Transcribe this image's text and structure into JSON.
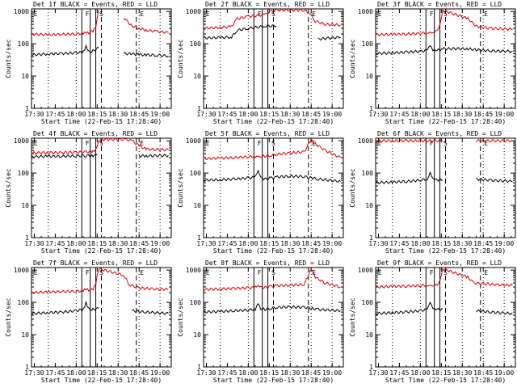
{
  "colors": {
    "events": "#000000",
    "lld": "#dd0000",
    "background": "#ffffff"
  },
  "chart_data": [
    {
      "type": "line",
      "title": "Det 1f BLACK = Events, RED = LLD",
      "ylabel": "Counts/sec",
      "xlabel": "Start Time (22-Feb-15 17:28:40)",
      "yscale": "log",
      "ylim": [
        1,
        1200
      ],
      "xticks": [
        "17:30",
        "17:45",
        "18:00",
        "18:15",
        "18:30",
        "18:45",
        "19:00"
      ],
      "yticks": [
        "1",
        "10",
        "100",
        "1000"
      ],
      "markers": [
        "E",
        "F",
        "S",
        "E"
      ],
      "series": [
        {
          "name": "BLACK = Events",
          "x": [
            "17:28",
            "17:40",
            "17:50",
            "18:00",
            "18:05",
            "18:07",
            "18:09",
            "18:12",
            "18:16",
            "18:32",
            "18:34",
            "18:40",
            "18:45",
            "18:50",
            "18:58",
            "19:06"
          ],
          "y": [
            45,
            48,
            50,
            52,
            55,
            80,
            55,
            60,
            75,
            null,
            50,
            48,
            46,
            45,
            44,
            42
          ]
        },
        {
          "name": "RED = LLD",
          "x": [
            "17:28",
            "17:40",
            "17:50",
            "18:00",
            "18:05",
            "18:07",
            "18:09",
            "18:12",
            "18:14",
            "18:16",
            "18:32",
            "18:34",
            "18:40",
            "18:45",
            "18:50",
            "18:58",
            "19:06"
          ],
          "y": [
            200,
            190,
            195,
            200,
            210,
            230,
            220,
            250,
            350,
            1100,
            null,
            650,
            350,
            300,
            260,
            240,
            220
          ]
        }
      ]
    },
    {
      "type": "line",
      "title": "Det 2f BLACK = Events, RED = LLD",
      "ylabel": "Counts/sec",
      "xlabel": "Start Time (22-Feb-15 17:28:40)",
      "yscale": "log",
      "ylim": [
        1,
        1200
      ],
      "xticks": [
        "17:30",
        "17:45",
        "18:00",
        "18:15",
        "18:30",
        "18:45",
        "19:00"
      ],
      "yticks": [
        "1",
        "10",
        "100",
        "1000"
      ],
      "markers": [
        "E",
        "F",
        "S",
        "E"
      ],
      "series": [
        {
          "name": "BLACK = Events",
          "x": [
            "17:28",
            "17:40",
            "17:48",
            "17:52",
            "18:00",
            "18:07",
            "18:12",
            "18:20",
            "18:30",
            "18:45",
            "18:50",
            "19:06"
          ],
          "y": [
            150,
            155,
            160,
            260,
            300,
            330,
            350,
            360,
            null,
            null,
            140,
            160
          ]
        },
        {
          "name": "RED = LLD",
          "x": [
            "17:28",
            "17:40",
            "17:48",
            "17:52",
            "18:00",
            "18:07",
            "18:12",
            "18:16",
            "18:20",
            "18:30",
            "18:40",
            "18:44",
            "18:48",
            "18:55",
            "19:06"
          ],
          "y": [
            300,
            320,
            340,
            600,
            700,
            750,
            800,
            1000,
            1100,
            1100,
            1100,
            900,
            500,
            400,
            380
          ]
        }
      ]
    },
    {
      "type": "line",
      "title": "Det 3f BLACK = Events, RED = LLD",
      "ylabel": "Counts/sec",
      "xlabel": "Start Time (22-Feb-15 17:28:40)",
      "yscale": "log",
      "ylim": [
        1,
        1200
      ],
      "xticks": [
        "17:30",
        "17:45",
        "18:00",
        "18:15",
        "18:30",
        "18:45",
        "19:00"
      ],
      "yticks": [
        "1",
        "10",
        "100",
        "1000"
      ],
      "markers": [
        "E",
        "F",
        "S",
        "E"
      ],
      "series": [
        {
          "name": "BLACK = Events",
          "x": [
            "17:28",
            "17:40",
            "17:50",
            "18:00",
            "18:05",
            "18:07",
            "18:09",
            "18:12",
            "18:16",
            "18:34",
            "18:40",
            "18:50",
            "19:06"
          ],
          "y": [
            50,
            52,
            55,
            58,
            62,
            85,
            60,
            62,
            70,
            70,
            65,
            60,
            58
          ]
        },
        {
          "name": "RED = LLD",
          "x": [
            "17:28",
            "17:40",
            "17:50",
            "18:00",
            "18:05",
            "18:07",
            "18:09",
            "18:12",
            "18:14",
            "18:16",
            "18:34",
            "18:40",
            "18:50",
            "19:06"
          ],
          "y": [
            190,
            195,
            200,
            210,
            220,
            240,
            225,
            260,
            400,
            1100,
            600,
            350,
            300,
            280
          ]
        }
      ]
    },
    {
      "type": "line",
      "title": "Det 4f BLACK = Events, RED = LLD",
      "ylabel": "Counts/sec",
      "xlabel": "Start Time (22-Feb-15 17:28:40)",
      "yscale": "log",
      "ylim": [
        1,
        1200
      ],
      "xticks": [
        "17:30",
        "17:45",
        "18:00",
        "18:15",
        "18:30",
        "18:45",
        "19:00"
      ],
      "yticks": [
        "1",
        "10",
        "100",
        "1000"
      ],
      "markers": [
        "E",
        "F",
        "S",
        "E"
      ],
      "series": [
        {
          "name": "BLACK = Events",
          "x": [
            "17:28",
            "17:40",
            "17:50",
            "18:00",
            "18:07",
            "18:12",
            "18:15",
            "18:40",
            "18:45",
            "18:50",
            "19:06"
          ],
          "y": [
            320,
            330,
            330,
            340,
            345,
            350,
            360,
            null,
            340,
            340,
            350
          ]
        },
        {
          "name": "RED = LLD",
          "x": [
            "17:28",
            "17:40",
            "17:50",
            "18:00",
            "18:07",
            "18:12",
            "18:14",
            "18:16",
            "18:18",
            "18:35",
            "18:40",
            "18:45",
            "18:50",
            "19:06"
          ],
          "y": [
            420,
            430,
            430,
            440,
            450,
            460,
            500,
            900,
            1100,
            1100,
            1000,
            700,
            550,
            520
          ]
        }
      ]
    },
    {
      "type": "line",
      "title": "Det 5f BLACK = Events, RED = LLD",
      "ylabel": "Counts/sec",
      "xlabel": "Start Time (22-Feb-15 17:28:40)",
      "yscale": "log",
      "ylim": [
        1,
        1200
      ],
      "xticks": [
        "17:30",
        "17:45",
        "18:00",
        "18:15",
        "18:30",
        "18:45",
        "19:00"
      ],
      "yticks": [
        "1",
        "10",
        "100",
        "1000"
      ],
      "markers": [
        "E",
        "F",
        "S",
        "E"
      ],
      "series": [
        {
          "name": "BLACK = Events",
          "x": [
            "17:28",
            "17:40",
            "17:50",
            "18:00",
            "18:05",
            "18:07",
            "18:09",
            "18:12",
            "18:16",
            "18:20",
            "18:30",
            "18:40",
            "18:46",
            "18:50",
            "19:06"
          ],
          "y": [
            60,
            62,
            65,
            70,
            75,
            110,
            70,
            65,
            70,
            75,
            80,
            78,
            70,
            65,
            55
          ]
        },
        {
          "name": "RED = LLD",
          "x": [
            "17:28",
            "17:40",
            "17:50",
            "18:00",
            "18:05",
            "18:07",
            "18:09",
            "18:12",
            "18:16",
            "18:20",
            "18:30",
            "18:40",
            "18:45",
            "18:48",
            "18:55",
            "19:06"
          ],
          "y": [
            280,
            290,
            300,
            320,
            330,
            350,
            330,
            330,
            350,
            380,
            420,
            450,
            1100,
            800,
            500,
            300
          ]
        }
      ]
    },
    {
      "type": "line",
      "title": "Det 6f BLACK = Events, RED = LLD",
      "ylabel": "Counts/sec",
      "xlabel": "Start Time (22-Feb-15 17:28:40)",
      "yscale": "log",
      "ylim": [
        1,
        1200
      ],
      "xticks": [
        "17:30",
        "17:45",
        "18:00",
        "18:15",
        "18:30",
        "18:45",
        "19:00"
      ],
      "yticks": [
        "1",
        "10",
        "100",
        "1000"
      ],
      "markers": [
        "E",
        "F",
        "S",
        "E"
      ],
      "series": [
        {
          "name": "BLACK = Events",
          "x": [
            "17:28",
            "17:40",
            "17:50",
            "18:00",
            "18:05",
            "18:07",
            "18:09",
            "18:12",
            "18:16",
            "18:34",
            "18:40",
            "18:50",
            "19:06"
          ],
          "y": [
            50,
            52,
            55,
            60,
            65,
            110,
            70,
            62,
            60,
            null,
            65,
            60,
            55
          ]
        },
        {
          "name": "RED = LLD",
          "x": [
            "17:28",
            "17:40",
            "17:50",
            "18:00",
            "18:10",
            "18:16",
            "18:34",
            "18:40",
            "18:50",
            "19:06"
          ],
          "y": [
            1000,
            1000,
            1000,
            1000,
            1000,
            1000,
            null,
            1000,
            1000,
            1000
          ]
        }
      ]
    },
    {
      "type": "line",
      "title": "Det 7f BLACK = Events, RED = LLD",
      "ylabel": "Counts/sec",
      "xlabel": "Start Time (22-Feb-15 17:28:40)",
      "yscale": "log",
      "ylim": [
        1,
        1200
      ],
      "xticks": [
        "17:30",
        "17:45",
        "18:00",
        "18:15",
        "18:30",
        "18:45",
        "19:00"
      ],
      "yticks": [
        "1",
        "10",
        "100",
        "1000"
      ],
      "markers": [
        "E",
        "F",
        "S",
        "E"
      ],
      "series": [
        {
          "name": "BLACK = Events",
          "x": [
            "17:28",
            "17:40",
            "17:50",
            "18:00",
            "18:05",
            "18:07",
            "18:09",
            "18:12",
            "18:16",
            "18:34",
            "18:40",
            "18:50",
            "19:06"
          ],
          "y": [
            45,
            48,
            50,
            55,
            60,
            95,
            62,
            60,
            65,
            null,
            55,
            50,
            45
          ]
        },
        {
          "name": "RED = LLD",
          "x": [
            "17:28",
            "17:40",
            "17:50",
            "18:00",
            "18:05",
            "18:07",
            "18:09",
            "18:12",
            "18:14",
            "18:16",
            "18:34",
            "18:38",
            "18:45",
            "18:55",
            "19:06"
          ],
          "y": [
            200,
            210,
            215,
            220,
            230,
            260,
            240,
            260,
            400,
            1100,
            700,
            350,
            280,
            260,
            250
          ]
        }
      ]
    },
    {
      "type": "line",
      "title": "Det 8f BLACK = Events, RED = LLD",
      "ylabel": "Counts/sec",
      "xlabel": "Start Time (22-Feb-15 17:28:40)",
      "yscale": "log",
      "ylim": [
        1,
        1200
      ],
      "xticks": [
        "17:30",
        "17:45",
        "18:00",
        "18:15",
        "18:30",
        "18:45",
        "19:00"
      ],
      "yticks": [
        "1",
        "10",
        "100",
        "1000"
      ],
      "markers": [
        "E",
        "F",
        "S",
        "E"
      ],
      "series": [
        {
          "name": "BLACK = Events",
          "x": [
            "17:28",
            "17:40",
            "17:50",
            "18:00",
            "18:05",
            "18:07",
            "18:09",
            "18:12",
            "18:16",
            "18:20",
            "18:30",
            "18:40",
            "18:46",
            "18:50",
            "19:06"
          ],
          "y": [
            50,
            52,
            55,
            58,
            62,
            100,
            65,
            60,
            65,
            70,
            72,
            70,
            65,
            60,
            55
          ]
        },
        {
          "name": "RED = LLD",
          "x": [
            "17:28",
            "17:40",
            "17:50",
            "18:00",
            "18:05",
            "18:07",
            "18:09",
            "18:12",
            "18:16",
            "18:20",
            "18:30",
            "18:40",
            "18:45",
            "18:48",
            "18:55",
            "19:06"
          ],
          "y": [
            250,
            260,
            270,
            280,
            290,
            310,
            290,
            290,
            310,
            330,
            340,
            360,
            1100,
            600,
            400,
            300
          ]
        }
      ]
    },
    {
      "type": "line",
      "title": "Det 9f BLACK = Events, RED = LLD",
      "ylabel": "Counts/sec",
      "xlabel": "Start Time (22-Feb-15 17:28:40)",
      "yscale": "log",
      "ylim": [
        1,
        1200
      ],
      "xticks": [
        "17:30",
        "17:45",
        "18:00",
        "18:15",
        "18:30",
        "18:45",
        "19:00"
      ],
      "yticks": [
        "1",
        "10",
        "100",
        "1000"
      ],
      "markers": [
        "E",
        "F",
        "S",
        "E"
      ],
      "series": [
        {
          "name": "BLACK = Events",
          "x": [
            "17:28",
            "17:40",
            "17:50",
            "18:00",
            "18:05",
            "18:07",
            "18:09",
            "18:12",
            "18:16",
            "18:34",
            "18:40",
            "18:50",
            "19:06"
          ],
          "y": [
            45,
            48,
            50,
            55,
            60,
            95,
            62,
            60,
            62,
            null,
            55,
            50,
            45
          ]
        },
        {
          "name": "RED = LLD",
          "x": [
            "17:28",
            "17:40",
            "17:50",
            "18:00",
            "18:05",
            "18:07",
            "18:09",
            "18:12",
            "18:14",
            "18:16",
            "18:34",
            "18:38",
            "18:45",
            "18:55",
            "19:06"
          ],
          "y": [
            300,
            310,
            320,
            330,
            340,
            360,
            340,
            350,
            500,
            1100,
            600,
            400,
            380,
            350,
            340
          ]
        }
      ]
    }
  ]
}
